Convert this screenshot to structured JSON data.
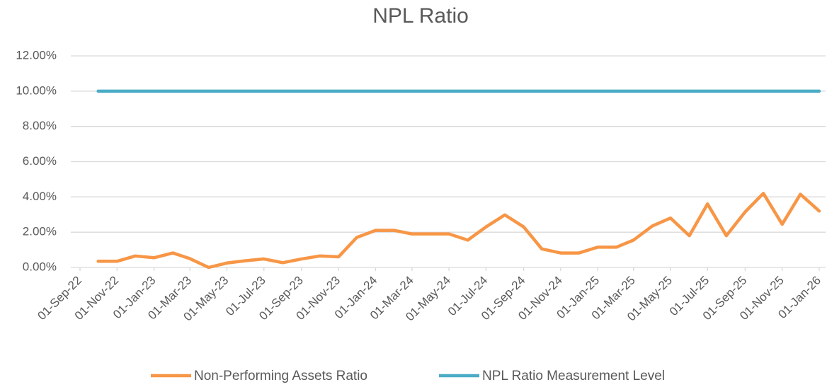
{
  "chart_data": {
    "type": "line",
    "title": "NPL Ratio",
    "x": [
      "2022-10-01",
      "2022-11-01",
      "2022-12-01",
      "2023-01-01",
      "2023-02-01",
      "2023-03-01",
      "2023-04-01",
      "2023-05-01",
      "2023-06-01",
      "2023-07-01",
      "2023-08-01",
      "2023-09-01",
      "2023-10-01",
      "2023-11-01",
      "2023-12-01",
      "2024-01-01",
      "2024-02-01",
      "2024-03-01",
      "2024-04-01",
      "2024-05-01",
      "2024-06-01",
      "2024-07-01",
      "2024-08-01",
      "2024-09-01",
      "2024-10-01",
      "2024-11-01",
      "2024-12-01",
      "2025-01-01",
      "2025-02-01",
      "2025-03-01",
      "2025-04-01",
      "2025-05-01",
      "2025-06-01",
      "2025-07-01",
      "2025-08-01",
      "2025-09-01",
      "2025-10-01",
      "2025-11-01",
      "2025-12-01",
      "2026-01-01"
    ],
    "series": [
      {
        "name": "Non-Performing Assets Ratio",
        "color": "#f79646",
        "values": [
          0.35,
          0.35,
          0.65,
          0.55,
          0.82,
          0.5,
          0.0,
          0.25,
          0.38,
          0.48,
          0.27,
          0.48,
          0.65,
          0.6,
          1.7,
          2.1,
          2.1,
          1.9,
          1.9,
          1.9,
          1.55,
          2.3,
          2.98,
          2.3,
          1.05,
          0.82,
          0.82,
          1.15,
          1.15,
          1.55,
          2.35,
          2.8,
          1.8,
          3.6,
          1.8,
          3.15,
          4.2,
          2.45,
          4.15,
          3.2
        ]
      },
      {
        "name": "NPL Ratio Measurement Level",
        "color": "#4bacc6",
        "values": [
          10,
          10,
          10,
          10,
          10,
          10,
          10,
          10,
          10,
          10,
          10,
          10,
          10,
          10,
          10,
          10,
          10,
          10,
          10,
          10,
          10,
          10,
          10,
          10,
          10,
          10,
          10,
          10,
          10,
          10,
          10,
          10,
          10,
          10,
          10,
          10,
          10,
          10,
          10,
          10
        ]
      }
    ],
    "xlim": [
      "2022-09-01",
      "2026-01-01"
    ],
    "xticks": [
      {
        "value": "2022-09-01",
        "label": "01-Sep-22"
      },
      {
        "value": "2022-11-01",
        "label": "01-Nov-22"
      },
      {
        "value": "2023-01-01",
        "label": "01-Jan-23"
      },
      {
        "value": "2023-03-01",
        "label": "01-Mar-23"
      },
      {
        "value": "2023-05-01",
        "label": "01-May-23"
      },
      {
        "value": "2023-07-01",
        "label": "01-Jul-23"
      },
      {
        "value": "2023-09-01",
        "label": "01-Sep-23"
      },
      {
        "value": "2023-11-01",
        "label": "01-Nov-23"
      },
      {
        "value": "2024-01-01",
        "label": "01-Jan-24"
      },
      {
        "value": "2024-03-01",
        "label": "01-Mar-24"
      },
      {
        "value": "2024-05-01",
        "label": "01-May-24"
      },
      {
        "value": "2024-07-01",
        "label": "01-Jul-24"
      },
      {
        "value": "2024-09-01",
        "label": "01-Sep-24"
      },
      {
        "value": "2024-11-01",
        "label": "01-Nov-24"
      },
      {
        "value": "2025-01-01",
        "label": "01-Jan-25"
      },
      {
        "value": "2025-03-01",
        "label": "01-Mar-25"
      },
      {
        "value": "2025-05-01",
        "label": "01-May-25"
      },
      {
        "value": "2025-07-01",
        "label": "01-Jul-25"
      },
      {
        "value": "2025-09-01",
        "label": "01-Sep-25"
      },
      {
        "value": "2025-11-01",
        "label": "01-Nov-25"
      },
      {
        "value": "2026-01-01",
        "label": "01-Jan-26"
      }
    ],
    "ylim": [
      0,
      12
    ],
    "yticks": [
      {
        "value": 0,
        "label": "0.00%"
      },
      {
        "value": 2,
        "label": "2.00%"
      },
      {
        "value": 4,
        "label": "4.00%"
      },
      {
        "value": 6,
        "label": "6.00%"
      },
      {
        "value": 8,
        "label": "8.00%"
      },
      {
        "value": 10,
        "label": "10.00%"
      },
      {
        "value": 12,
        "label": "12.00%"
      }
    ],
    "grid": true,
    "legend": "bottom"
  }
}
